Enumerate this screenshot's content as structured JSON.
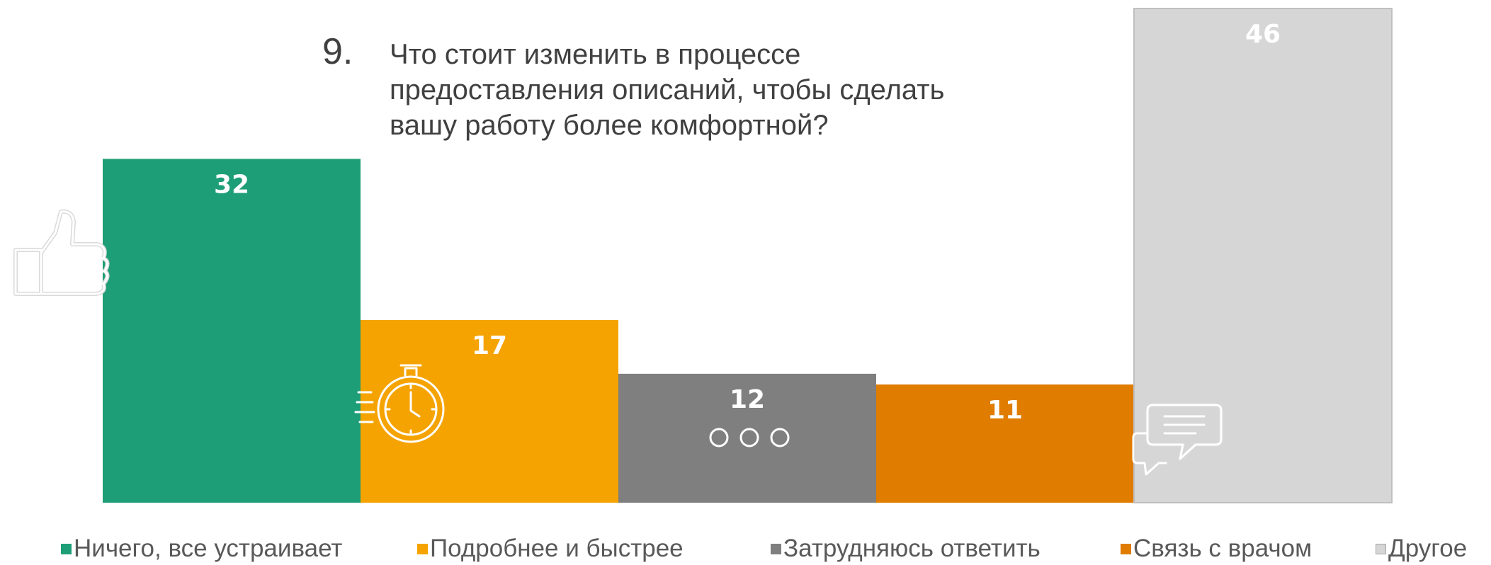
{
  "question": {
    "number": "9.",
    "text": "Что стоит изменить в процессе предоставления описаний, чтобы сделать вашу работу более комфортной?"
  },
  "chart_data": {
    "type": "bar",
    "categories": [
      "Ничего, все устраивает",
      "Подробнее и быстрее",
      "Затрудняюсь ответить",
      "Связь с врачом",
      "Другое"
    ],
    "values": [
      32,
      17,
      12,
      11,
      46
    ],
    "colors": [
      "#1e9e77",
      "#f5a300",
      "#7f7f7f",
      "#e07c00",
      "#d6d6d6"
    ],
    "ylim": [
      0,
      46
    ],
    "grid": false,
    "legend_position": "bottom",
    "icons": [
      "thumbs-up-icon",
      "stopwatch-icon",
      "ellipsis-icon",
      "",
      "chat-bubbles-icon"
    ]
  }
}
